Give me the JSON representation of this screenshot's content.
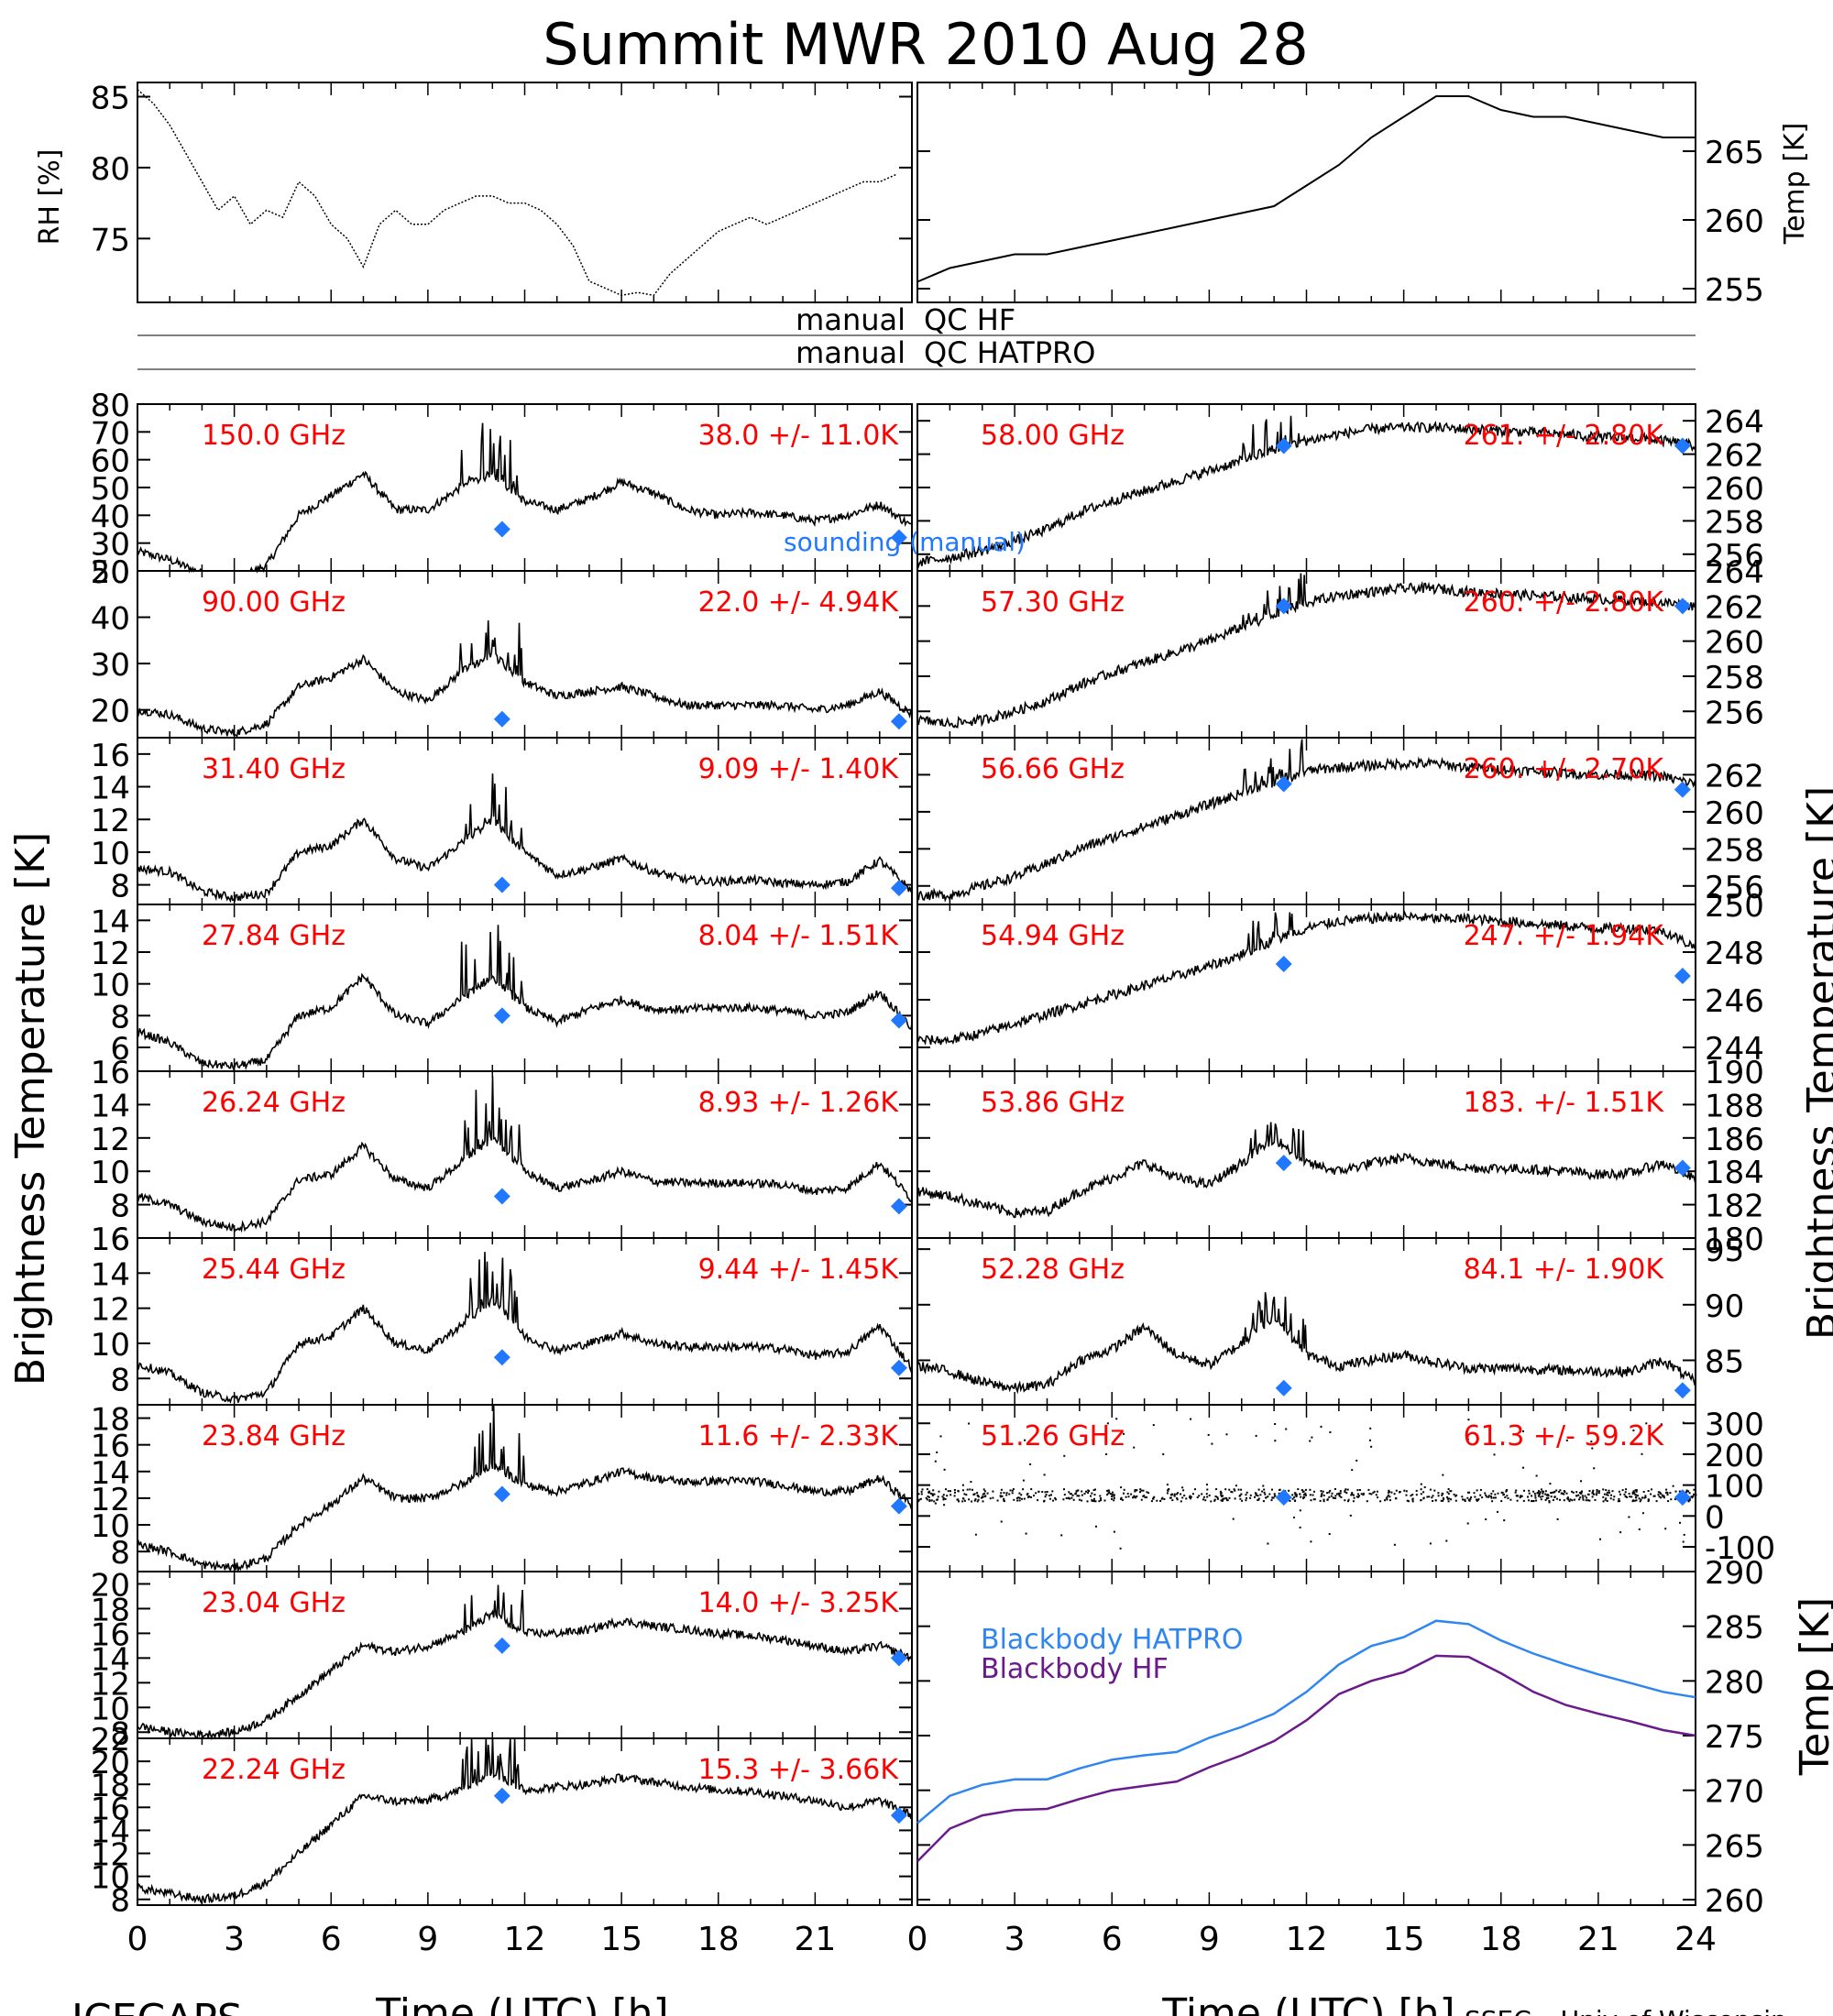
{
  "title": "Summit MWR 2010 Aug 28",
  "footer_left": "ICECAPS",
  "footer_right": "SSEC – Univ of Wisconsin",
  "axes": {
    "x_label": "Time (UTC) [h]",
    "x_ticks": [
      "0",
      "3",
      "6",
      "9",
      "12",
      "15",
      "18",
      "21"
    ],
    "x_ticks_right": [
      "0",
      "3",
      "6",
      "9",
      "12",
      "15",
      "18",
      "21",
      "24"
    ],
    "y_label_left": "Brightness Temperature [K]",
    "y_label_right": "Brightness Temperature [K]",
    "rh_label": "RH [%]",
    "temp_label": "Temp [K]",
    "bb_temp_label": "Temp [K]"
  },
  "qc": {
    "left1": "manual",
    "right1": "QC HF",
    "left2": "manual",
    "right2": "QC HATPRO"
  },
  "sounding_label": "sounding (manual)",
  "colors": {
    "trace": "#000000",
    "label": "#ff0000",
    "sounding": "#1f78ff",
    "bb_hatpro": "#2f86f0",
    "bb_hf": "#6a1a8a"
  },
  "chart_data": [
    {
      "type": "line",
      "panel": "RH",
      "title": "",
      "xlabel": "",
      "ylabel": "RH [%]",
      "ylim": [
        70.5,
        86
      ],
      "yticks": [
        75,
        80,
        85
      ],
      "x": [
        0,
        0.5,
        1,
        1.5,
        2,
        2.5,
        3,
        3.5,
        4,
        4.5,
        5,
        5.5,
        6,
        6.5,
        7,
        7.5,
        8,
        8.5,
        9,
        9.5,
        10,
        10.5,
        11,
        11.5,
        12,
        12.5,
        13,
        13.5,
        14,
        14.5,
        15,
        15.5,
        16,
        16.5,
        17,
        17.5,
        18,
        18.5,
        19,
        19.5,
        20,
        20.5,
        21,
        21.5,
        22,
        22.5,
        23,
        23.5
      ],
      "values": [
        85.5,
        84.5,
        83,
        81,
        79,
        77,
        78,
        76,
        77,
        76.5,
        79,
        78,
        76,
        75,
        73,
        76,
        77,
        76,
        76,
        77,
        77.5,
        78,
        78,
        77.5,
        77.5,
        77,
        76,
        74.5,
        72,
        71.5,
        71,
        71.2,
        71,
        72.5,
        73.5,
        74.5,
        75.5,
        76,
        76.5,
        76,
        76.5,
        77,
        77.5,
        78,
        78.5,
        79,
        79,
        79.5
      ]
    },
    {
      "type": "line",
      "panel": "Temp",
      "title": "",
      "xlabel": "",
      "ylabel": "Temp [K]",
      "ylim": [
        254,
        270
      ],
      "yticks": [
        255,
        260,
        265
      ],
      "x": [
        0,
        1,
        2,
        3,
        4,
        5,
        6,
        7,
        8,
        9,
        10,
        11,
        12,
        13,
        14,
        15,
        16,
        17,
        18,
        19,
        20,
        21,
        22,
        23,
        24
      ],
      "values": [
        255.5,
        256.5,
        257,
        257.5,
        257.5,
        258,
        258.5,
        259,
        259.5,
        260,
        260.5,
        261,
        262.5,
        264,
        266,
        267.5,
        269,
        269,
        268,
        267.5,
        267.5,
        267,
        266.5,
        266,
        266
      ]
    },
    {
      "type": "line",
      "panel": "150.0 GHz",
      "label": "150.0 GHz",
      "stats": "38.0 +/-  11.0K",
      "ylim": [
        20,
        80
      ],
      "yticks": [
        20,
        30,
        40,
        50,
        60,
        70,
        80
      ],
      "base": [
        27,
        24,
        19,
        17,
        22,
        40,
        47,
        55,
        42,
        42,
        50,
        55,
        45,
        42,
        46,
        52,
        48,
        42,
        40,
        41,
        40,
        38,
        40,
        44,
        36
      ],
      "sounding": [
        [
          11.3,
          35
        ],
        [
          23.6,
          32
        ]
      ]
    },
    {
      "type": "line",
      "panel": "90.00 GHz",
      "label": "90.00 GHz",
      "stats": "22.0 +/-  4.94K",
      "ylim": [
        14,
        50
      ],
      "yticks": [
        20,
        30,
        40,
        50
      ],
      "base": [
        20,
        19,
        16,
        15,
        17,
        25,
        27,
        31,
        24,
        22,
        28,
        32,
        26,
        23,
        24,
        25,
        23,
        21,
        21,
        21,
        21,
        20,
        21,
        24,
        19
      ],
      "sounding": [
        [
          11.3,
          18
        ],
        [
          23.6,
          17.5
        ]
      ]
    },
    {
      "type": "line",
      "panel": "31.40 GHz",
      "label": "31.40 GHz",
      "stats": "9.09 +/- 1.40K",
      "ylim": [
        6.8,
        17
      ],
      "yticks": [
        8,
        10,
        12,
        14,
        16
      ],
      "base": [
        9,
        8.8,
        7.6,
        7.2,
        7.5,
        10,
        10.4,
        12,
        9.6,
        9,
        10.5,
        12,
        10,
        8.6,
        9,
        9.6,
        8.8,
        8.3,
        8.2,
        8.3,
        8.1,
        8,
        8.2,
        9.5,
        7.6
      ],
      "sounding": [
        [
          11.3,
          8
        ],
        [
          23.6,
          7.8
        ]
      ]
    },
    {
      "type": "line",
      "panel": "27.84 GHz",
      "label": "27.84 GHz",
      "stats": "8.04 +/- 1.51K",
      "ylim": [
        4.5,
        15
      ],
      "yticks": [
        6,
        8,
        10,
        12,
        14
      ],
      "base": [
        7,
        6.3,
        5,
        4.8,
        5.2,
        8,
        8.5,
        10.5,
        8,
        7.5,
        9,
        10.5,
        8.5,
        7.6,
        8.4,
        9,
        8.4,
        8.4,
        8.5,
        8.5,
        8.3,
        8,
        8.2,
        9.5,
        7.2
      ],
      "sounding": [
        [
          11.3,
          8
        ],
        [
          23.6,
          7.7
        ]
      ]
    },
    {
      "type": "line",
      "panel": "26.24 GHz",
      "label": "26.24 GHz",
      "stats": "8.93 +/- 1.26K",
      "ylim": [
        6,
        16
      ],
      "yticks": [
        6,
        8,
        10,
        12,
        14,
        16
      ],
      "base": [
        8.5,
        8,
        7,
        6.6,
        7,
        9.5,
        9.8,
        11.5,
        9.5,
        9,
        10.5,
        12,
        10,
        9,
        9.4,
        10,
        9.4,
        9.3,
        9.3,
        9.3,
        9.2,
        8.8,
        9,
        10.5,
        8.3
      ],
      "sounding": [
        [
          11.3,
          8.5
        ],
        [
          23.6,
          7.9
        ]
      ]
    },
    {
      "type": "line",
      "panel": "25.44 GHz",
      "label": "25.44 GHz",
      "stats": "9.44 +/- 1.45K",
      "ylim": [
        6.5,
        16
      ],
      "yticks": [
        8,
        10,
        12,
        14,
        16
      ],
      "base": [
        8.8,
        8.3,
        7.2,
        6.8,
        7.2,
        10,
        10.4,
        12,
        10,
        9.6,
        11,
        12.5,
        10.4,
        9.6,
        10,
        10.6,
        10,
        9.8,
        9.8,
        9.8,
        9.7,
        9.3,
        9.5,
        11,
        8.6
      ],
      "sounding": [
        [
          11.3,
          9.2
        ],
        [
          23.6,
          8.6
        ]
      ]
    },
    {
      "type": "line",
      "panel": "23.84 GHz",
      "label": "23.84 GHz",
      "stats": "11.6 +/- 2.33K",
      "ylim": [
        6.5,
        19
      ],
      "yticks": [
        8,
        10,
        12,
        14,
        16,
        18
      ],
      "base": [
        8.5,
        8,
        7,
        6.8,
        7.5,
        10,
        11.5,
        13.5,
        12,
        12,
        13,
        14.5,
        13,
        12.5,
        13.2,
        14,
        13.5,
        13.2,
        13.3,
        13.3,
        13,
        12.5,
        12.5,
        13.5,
        11.5
      ],
      "sounding": [
        [
          11.3,
          12.3
        ],
        [
          23.6,
          11.4
        ]
      ]
    },
    {
      "type": "line",
      "panel": "23.04 GHz",
      "label": "23.04 GHz",
      "stats": "14.0 +/- 3.25K",
      "ylim": [
        7.5,
        21
      ],
      "yticks": [
        8,
        10,
        12,
        14,
        16,
        18,
        20
      ],
      "base": [
        8.5,
        8,
        7.8,
        8,
        9,
        11,
        13,
        15,
        14.5,
        15,
        16,
        17.5,
        16,
        16,
        16.3,
        17,
        16.6,
        16.3,
        16,
        15.8,
        15.5,
        15,
        14.5,
        15,
        14
      ],
      "sounding": [
        [
          11.3,
          15
        ],
        [
          23.6,
          14
        ]
      ]
    },
    {
      "type": "line",
      "panel": "22.24 GHz",
      "label": "22.24 GHz",
      "stats": "15.3 +/- 3.66K",
      "ylim": [
        7.5,
        22
      ],
      "yticks": [
        8,
        10,
        12,
        14,
        16,
        18,
        20,
        22
      ],
      "base": [
        9,
        8.5,
        8,
        8.3,
        9.5,
        12,
        14.5,
        17,
        16.5,
        16.6,
        17.5,
        19,
        17.5,
        17.8,
        18,
        18.6,
        18.2,
        17.8,
        17.5,
        17.4,
        17,
        16.6,
        16,
        16.6,
        15.3
      ],
      "sounding": [
        [
          11.3,
          17
        ],
        [
          23.6,
          15.3
        ]
      ]
    },
    {
      "type": "line",
      "panel": "58.00 GHz",
      "label": "58.00 GHz",
      "stats": "261. +/- 2.80K",
      "ylim": [
        255,
        265
      ],
      "yticks": [
        256,
        258,
        260,
        262,
        264
      ],
      "base": [
        255.5,
        255.8,
        256.2,
        256.8,
        257.5,
        258.5,
        259.2,
        259.8,
        260.4,
        261,
        261.6,
        262.3,
        262.8,
        263.2,
        263.5,
        263.6,
        263.6,
        263.5,
        263.4,
        263.3,
        263.2,
        263,
        263,
        262.8,
        262.5
      ],
      "sounding": [
        [
          11.3,
          262.5
        ],
        [
          23.6,
          262.5
        ]
      ]
    },
    {
      "type": "line",
      "panel": "57.30 GHz",
      "label": "57.30 GHz",
      "stats": "260. +/- 2.80K",
      "ylim": [
        254.5,
        264
      ],
      "yticks": [
        256,
        258,
        260,
        262,
        264
      ],
      "base": [
        255.5,
        255.3,
        255.5,
        256,
        256.6,
        257.5,
        258.2,
        258.8,
        259.4,
        260,
        260.8,
        261.5,
        262.2,
        262.6,
        262.8,
        263,
        263,
        262.8,
        262.7,
        262.6,
        262.5,
        262.4,
        262.3,
        262.2,
        262
      ],
      "sounding": [
        [
          11.3,
          262
        ],
        [
          23.6,
          262
        ]
      ]
    },
    {
      "type": "line",
      "panel": "56.66 GHz",
      "label": "56.66 GHz",
      "stats": "260. +/- 2.70K",
      "ylim": [
        255,
        264
      ],
      "yticks": [
        256,
        258,
        260,
        262
      ],
      "base": [
        255.5,
        255.5,
        256,
        256.5,
        257.2,
        258,
        258.6,
        259.2,
        259.8,
        260.4,
        261,
        261.6,
        262.2,
        262.4,
        262.5,
        262.6,
        262.6,
        262.4,
        262.3,
        262.2,
        262.1,
        262,
        262,
        261.9,
        261.5
      ],
      "sounding": [
        [
          11.3,
          261.5
        ],
        [
          23.6,
          261.2
        ]
      ]
    },
    {
      "type": "line",
      "panel": "54.94 GHz",
      "label": "54.94 GHz",
      "stats": "247. +/- 1.94K",
      "ylim": [
        243,
        250
      ],
      "yticks": [
        244,
        246,
        248,
        250
      ],
      "base": [
        244.3,
        244.3,
        244.6,
        245,
        245.4,
        245.8,
        246.2,
        246.6,
        247,
        247.4,
        247.9,
        248.5,
        249,
        249.3,
        249.4,
        249.5,
        249.4,
        249.4,
        249.3,
        249.2,
        249.1,
        249,
        249,
        248.9,
        248.2
      ],
      "sounding": [
        [
          11.3,
          247.5
        ],
        [
          23.6,
          247
        ]
      ]
    },
    {
      "type": "line",
      "panel": "53.86 GHz",
      "label": "53.86 GHz",
      "stats": "183. +/- 1.51K",
      "ylim": [
        180,
        190
      ],
      "yticks": [
        180,
        182,
        184,
        186,
        188,
        190
      ],
      "base": [
        182.8,
        182.5,
        182,
        181.5,
        181.6,
        182.8,
        183.6,
        184.5,
        183.6,
        183.2,
        184.5,
        186,
        184.5,
        184,
        184.5,
        184.8,
        184.5,
        184.2,
        184.2,
        184.1,
        184,
        183.8,
        183.9,
        184.5,
        183.5
      ],
      "sounding": [
        [
          11.3,
          184.5
        ],
        [
          23.6,
          184.2
        ]
      ]
    },
    {
      "type": "line",
      "panel": "52.28 GHz",
      "label": "52.28 GHz",
      "stats": "84.1 +/- 1.90K",
      "ylim": [
        81,
        96
      ],
      "yticks": [
        85,
        90,
        95
      ],
      "base": [
        84.5,
        84,
        83,
        82.5,
        82.8,
        85,
        86,
        88,
        85.5,
        84.6,
        86.5,
        89,
        85.5,
        84.5,
        85,
        85.5,
        84.8,
        84.3,
        84.3,
        84.2,
        84.1,
        84,
        84,
        85,
        83
      ],
      "sounding": [
        [
          11.3,
          82.5
        ],
        [
          23.6,
          82.3
        ]
      ]
    },
    {
      "type": "scatter",
      "panel": "51.26 GHz",
      "label": "51.26 GHz",
      "stats": "61.3 +/- 59.2K",
      "ylim": [
        -180,
        360
      ],
      "yticks": [
        -100,
        0,
        100,
        200,
        300
      ],
      "base": [
        70,
        70,
        68,
        68,
        67,
        68,
        66,
        65,
        64,
        64,
        63,
        62,
        62,
        62,
        62,
        62,
        62,
        62,
        62,
        62,
        62,
        62,
        62,
        62,
        62
      ],
      "sounding": [
        [
          11.3,
          60
        ],
        [
          23.6,
          60
        ]
      ]
    },
    {
      "type": "line",
      "panel": "Blackbody",
      "title": "",
      "xlabel": "Time (UTC) [h]",
      "ylabel": "Temp [K]",
      "ylim": [
        259.5,
        290
      ],
      "yticks": [
        260,
        265,
        270,
        275,
        280,
        285,
        290
      ],
      "x": [
        0,
        1,
        2,
        3,
        4,
        5,
        6,
        7,
        8,
        9,
        10,
        11,
        12,
        13,
        14,
        15,
        16,
        17,
        18,
        19,
        20,
        21,
        22,
        23,
        24
      ],
      "series": [
        {
          "name": "Blackbody HATPRO",
          "values": [
            267,
            269.5,
            270.5,
            271,
            271,
            272,
            272.8,
            273.2,
            273.5,
            274.8,
            275.8,
            277,
            279,
            281.5,
            283.2,
            284,
            285.5,
            285.2,
            283.7,
            282.5,
            281.5,
            280.6,
            279.8,
            279,
            278.5
          ]
        },
        {
          "name": "Blackbody HF",
          "values": [
            263.5,
            266.5,
            267.7,
            268.2,
            268.3,
            269.2,
            270,
            270.4,
            270.8,
            272.1,
            273.2,
            274.5,
            276.4,
            278.8,
            280,
            280.8,
            282.3,
            282.2,
            280.7,
            279,
            277.8,
            277,
            276.3,
            275.5,
            275
          ]
        }
      ]
    }
  ]
}
